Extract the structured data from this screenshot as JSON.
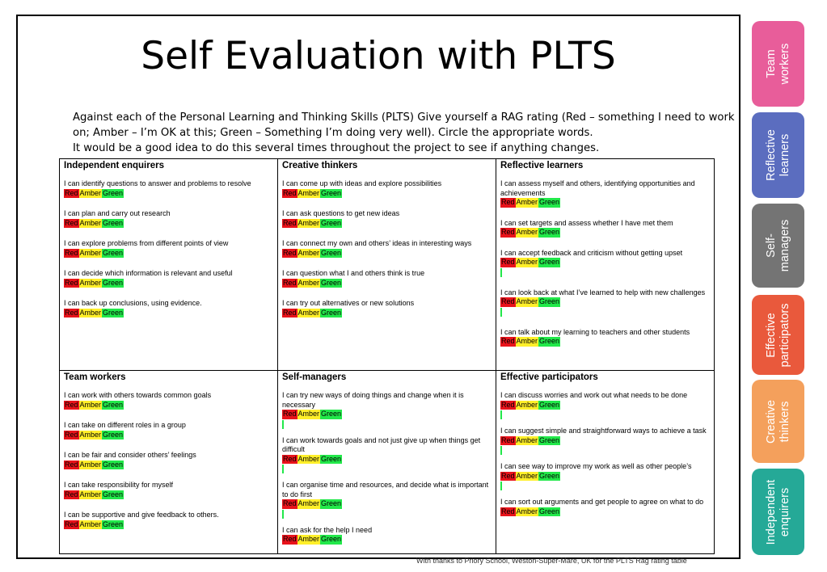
{
  "title": "Self Evaluation with PLTS",
  "intro": [
    "Against each of the Personal Learning and Thinking Skills (PLTS) Give yourself a RAG rating (Red – something I need to work",
    "on; Amber – I’m OK at this; Green – Something I’m doing very well). Circle the appropriate words.",
    "It would be a good idea to do this several times throughout the project to see if anything changes."
  ],
  "rag": {
    "red": "Red",
    "amber": "Amber",
    "green": "Green"
  },
  "colors": {
    "red": "#e8131b",
    "amber": "#ffef2a",
    "green": "#22e84a"
  },
  "cells": [
    {
      "heading": "Independent enquirers",
      "items": [
        "I can identify questions to answer and problems to resolve",
        "I can plan and carry out research",
        "I can explore problems from different points of view",
        "I can decide which information is relevant and useful",
        "I can back up conclusions, using evidence."
      ]
    },
    {
      "heading": "Creative thinkers",
      "items": [
        "I can come up with ideas and explore possibilities",
        "I can ask questions to get new ideas",
        "I can connect my own and others’ ideas in interesting ways",
        "I can question what I and others think is true",
        "I can try out alternatives or new solutions"
      ]
    },
    {
      "heading": "Reflective learners",
      "items": [
        " I can assess myself and others, identifying opportunities and achievements",
        "I can set targets and assess whether I have met them",
        "I can accept feedback and criticism without getting upset",
        " I can look back at what I’ve learned to help with new challenges",
        "I can talk about my learning to teachers and other students"
      ]
    },
    {
      "heading": "Team workers",
      "items": [
        "I can work with others towards common goals",
        "I can take on different roles in a group",
        "I can be fair and consider others’ feelings",
        "I can take responsibility for myself",
        "I can be supportive and give feedback to others."
      ]
    },
    {
      "heading": "Self-managers",
      "items": [
        "I can try new ways of doing things and change when it is necessary",
        "I can work towards goals and not just give up when things get difficult",
        "I can organise time and resources, and decide what is important to do first",
        "I can ask for the help I need"
      ]
    },
    {
      "heading": "Effective participators",
      "items": [
        " I can discuss worries and work out what needs to be done",
        "I can suggest simple and straightforward ways to achieve a task",
        "I can see way to improve my work as well as other people’s",
        "I can sort out arguments and get people to agree on what to do"
      ]
    }
  ],
  "tabs": [
    {
      "label": "Team workers",
      "lines": [
        "Team",
        "workers"
      ],
      "color": "#e85d9a"
    },
    {
      "label": "Reflective learners",
      "lines": [
        "Reflective",
        "learners"
      ],
      "color": "#5b6dbf"
    },
    {
      "label": "Self-managers",
      "lines": [
        "Self-",
        "managers"
      ],
      "color": "#747474"
    },
    {
      "label": "Effective participators",
      "lines": [
        "Effective",
        "participators"
      ],
      "color": "#e9593c"
    },
    {
      "label": "Creative thinkers",
      "lines": [
        "Creative",
        "thinkers"
      ],
      "color": "#f4a05c"
    },
    {
      "label": "Independent enquirers",
      "lines": [
        "Independent",
        "enquirers"
      ],
      "color": "#25a997"
    }
  ],
  "credit": "With thanks to Priory School, Weston-Super-Mare, UK for the PLTS Rag rating table"
}
